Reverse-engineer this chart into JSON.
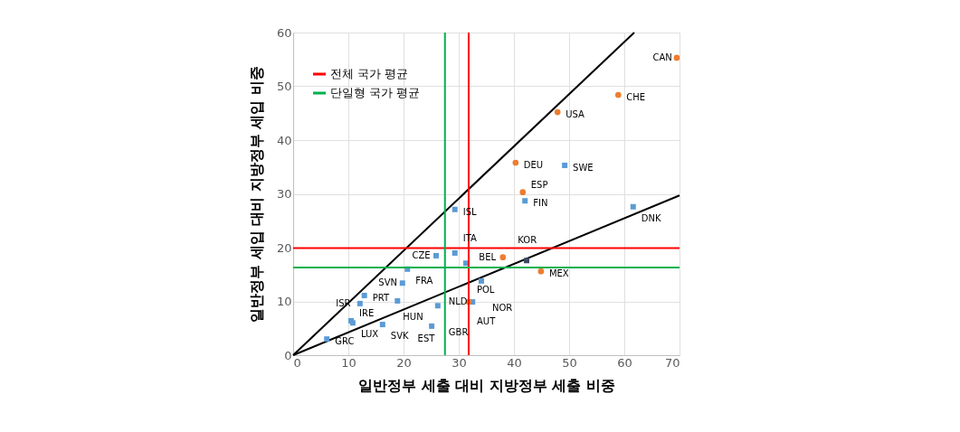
{
  "chart_data": {
    "type": "scatter",
    "xlabel": "일반정부 세출 대비 지방정부 세출 비중",
    "ylabel": "일반정부 세입 대비 지방정부 세입 비중",
    "xlim": [
      0,
      70
    ],
    "ylim": [
      0,
      60
    ],
    "xticks": [
      0,
      10,
      20,
      30,
      40,
      50,
      60,
      70
    ],
    "yticks": [
      0,
      10,
      20,
      30,
      40,
      50,
      60
    ],
    "grid": true,
    "legend": "top left",
    "series": [
      {
        "type": "scatter",
        "marker": "circle",
        "color": "#ed7d31",
        "x": [
          69.5,
          58.9,
          47.9,
          40.3,
          41.6,
          38.0,
          44.9,
          31.8
        ],
        "values": [
          55.3,
          48.4,
          45.2,
          35.8,
          30.3,
          18.2,
          15.6,
          9.9
        ]
      },
      {
        "type": "scatter",
        "marker": "square",
        "color": "#5b9bd5",
        "x": [
          49.2,
          42.0,
          61.6,
          29.3,
          29.3,
          25.9,
          31.3,
          20.7,
          19.8,
          34.1,
          12.9,
          12.1,
          18.9,
          26.2,
          32.5,
          10.5,
          10.8,
          6.1,
          16.2,
          25.1
        ],
        "values": [
          35.3,
          28.7,
          27.6,
          27.1,
          19.0,
          18.5,
          17.1,
          16.0,
          13.4,
          13.8,
          11.1,
          9.6,
          10.1,
          9.2,
          9.9,
          6.4,
          6.0,
          3.0,
          5.7,
          5.4
        ]
      },
      {
        "type": "scatter",
        "marker": "square",
        "color": "#3b4a63",
        "x": [
          42.3
        ],
        "values": [
          17.6
        ]
      },
      {
        "type": "line",
        "marker": "none",
        "color": "#000000",
        "x": [
          0,
          61.8
        ],
        "values": [
          0,
          60
        ]
      },
      {
        "type": "line",
        "marker": "none",
        "color": "#000000",
        "x": [
          0,
          70
        ],
        "values": [
          0,
          29.7
        ]
      }
    ],
    "ref_lines": [
      {
        "axis": "x",
        "value": 31.8,
        "color": "#ff0000"
      },
      {
        "axis": "y",
        "value": 19.9,
        "color": "#ff0000",
        "label": "전체 국가 평균"
      },
      {
        "axis": "x",
        "value": 27.5,
        "color": "#00b050",
        "label": "단일형 국가 평균"
      },
      {
        "axis": "y",
        "value": 16.3,
        "color": "#00b050"
      }
    ],
    "annotations": [
      {
        "text": "CAN",
        "x": 69.5,
        "y": 55.3
      },
      {
        "text": "CHE",
        "x": 58.9,
        "y": 48.4
      },
      {
        "text": "USA",
        "x": 47.9,
        "y": 45.2
      },
      {
        "text": "DEU",
        "x": 40.3,
        "y": 35.8
      },
      {
        "text": "SWE",
        "x": 49.2,
        "y": 35.3
      },
      {
        "text": "ESP",
        "x": 41.6,
        "y": 30.3
      },
      {
        "text": "FIN",
        "x": 42.0,
        "y": 28.7
      },
      {
        "text": "DNK",
        "x": 61.6,
        "y": 27.6
      },
      {
        "text": "ISL",
        "x": 29.3,
        "y": 27.1
      },
      {
        "text": "ITA",
        "x": 29.3,
        "y": 19.0
      },
      {
        "text": "CZE",
        "x": 25.9,
        "y": 18.5
      },
      {
        "text": "POL",
        "x": 31.3,
        "y": 17.1
      },
      {
        "text": "BEL",
        "x": 38.0,
        "y": 18.2
      },
      {
        "text": "KOR",
        "x": 42.3,
        "y": 17.6
      },
      {
        "text": "MEX",
        "x": 44.9,
        "y": 15.6
      },
      {
        "text": "FRA",
        "x": 20.7,
        "y": 16.0
      },
      {
        "text": "SVN",
        "x": 19.8,
        "y": 13.4
      },
      {
        "text": "NOR",
        "x": 34.1,
        "y": 13.8
      },
      {
        "text": "PRT",
        "x": 12.9,
        "y": 11.1
      },
      {
        "text": "ISR",
        "x": 12.1,
        "y": 9.6
      },
      {
        "text": "HUN",
        "x": 18.9,
        "y": 10.1
      },
      {
        "text": "GBR",
        "x": 26.2,
        "y": 9.2
      },
      {
        "text": "NLD",
        "x": 32.5,
        "y": 9.9
      },
      {
        "text": "AUT",
        "x": 31.8,
        "y": 9.9
      },
      {
        "text": "IRE",
        "x": 10.5,
        "y": 6.4
      },
      {
        "text": "LUX",
        "x": 10.8,
        "y": 6.0
      },
      {
        "text": "SVK",
        "x": 16.2,
        "y": 5.7
      },
      {
        "text": "EST",
        "x": 25.1,
        "y": 5.4
      },
      {
        "text": "GRC",
        "x": 6.1,
        "y": 3.0
      }
    ]
  }
}
